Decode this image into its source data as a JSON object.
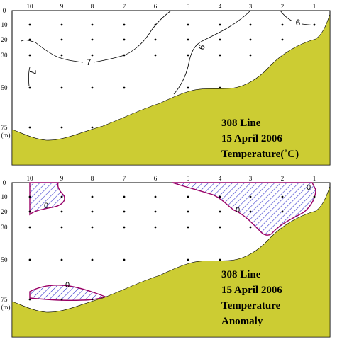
{
  "chart_data": [
    {
      "type": "contour",
      "panel": "temperature",
      "title_lines": [
        "308 Line",
        "15 April 2006",
        "Temperature(˚C)"
      ],
      "ylabel_unit": "(m)",
      "stations": [
        "10",
        "9",
        "8",
        "7",
        "6",
        "5",
        "4",
        "3",
        "2",
        "1"
      ],
      "depth_ticks": [
        "0",
        "10",
        "20",
        "30",
        "50",
        "75"
      ],
      "ylim": [
        0,
        80
      ],
      "sample_depths": {
        "10": [
          10,
          20,
          30,
          50,
          75
        ],
        "9": [
          10,
          20,
          30,
          50,
          75
        ],
        "8": [
          10,
          20,
          30,
          50,
          75
        ],
        "7": [
          10,
          20,
          30,
          50
        ],
        "6": [
          10,
          20,
          30
        ],
        "5": [
          10,
          20,
          30,
          50
        ],
        "4": [
          10,
          20,
          30,
          50
        ],
        "3": [
          10,
          20,
          30
        ],
        "2": [
          10,
          20
        ],
        "1": [
          10
        ]
      },
      "contour_labels": [
        "6",
        "6",
        "7",
        "7"
      ],
      "colors": {
        "bottom": "#cccc33",
        "contour": "#000000"
      }
    },
    {
      "type": "contour",
      "panel": "temperature_anomaly",
      "title_lines": [
        "308 Line",
        "15 April 2006",
        "Temperature",
        "Anomaly"
      ],
      "ylabel_unit": "(m)",
      "stations": [
        "10",
        "9",
        "8",
        "7",
        "6",
        "5",
        "4",
        "3",
        "2",
        "1"
      ],
      "depth_ticks": [
        "0",
        "10",
        "20",
        "30",
        "50",
        "75"
      ],
      "ylim": [
        0,
        80
      ],
      "sample_depths": {
        "10": [
          10,
          20,
          30,
          50,
          75
        ],
        "9": [
          10,
          20,
          30,
          50,
          75
        ],
        "8": [
          10,
          20,
          30,
          50,
          75
        ],
        "7": [
          10,
          20,
          30,
          50
        ],
        "6": [
          10,
          20,
          30
        ],
        "5": [
          10,
          20,
          30,
          50
        ],
        "4": [
          10,
          20,
          30,
          50
        ],
        "3": [
          10,
          20,
          30
        ],
        "2": [
          10,
          20
        ],
        "1": [
          10
        ]
      },
      "contour_labels": [
        "0",
        "0",
        "0",
        "0"
      ],
      "negative_hatched": true,
      "colors": {
        "bottom": "#cccc33",
        "contour": "#990066",
        "hatch": "#3333cc"
      }
    }
  ]
}
